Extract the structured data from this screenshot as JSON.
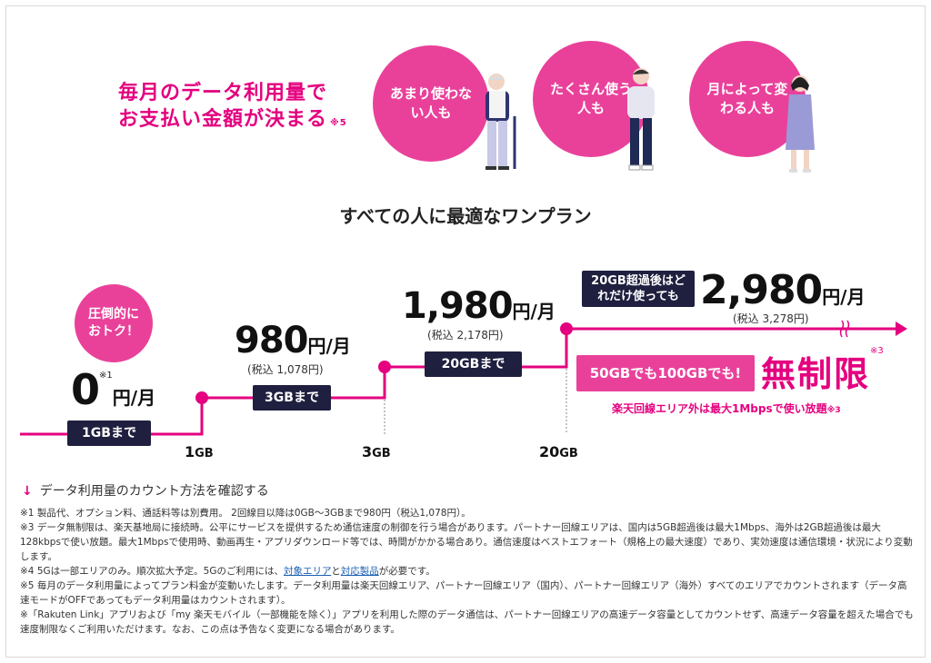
{
  "headline": {
    "line1": "毎月のデータ利用量で",
    "line2": "お支払い金額が決まる",
    "note": "※5"
  },
  "circles": [
    {
      "label": "あまり使わない人も"
    },
    {
      "label": "たくさん使う人も"
    },
    {
      "label": "月によって変わる人も"
    }
  ],
  "subtitle": "すべての人に最適なワンプラン",
  "badge": {
    "label": "圧倒的におトク！"
  },
  "tiers": [
    {
      "price": "0",
      "note": "※1",
      "unit": "円/月",
      "label": "1GBまで"
    },
    {
      "price": "980",
      "unit": "円/月",
      "tax": "(税込 1,078円)",
      "label": "3GBまで"
    },
    {
      "price": "1,980",
      "unit": "円/月",
      "tax": "(税込 2,178円)",
      "label": "20GBまで"
    },
    {
      "price": "2,980",
      "unit": "円/月",
      "tax": "(税込 3,278円)",
      "label": "20GB超過後はどれだけ使っても"
    }
  ],
  "xaxis": {
    "ticks": [
      {
        "num": "1",
        "unit": "GB"
      },
      {
        "num": "3",
        "unit": "GB"
      },
      {
        "num": "20",
        "unit": "GB"
      }
    ]
  },
  "unlimited": {
    "box": "50GBでも100GBでも!",
    "big": "無制限",
    "note": "※3",
    "sub": "楽天回線エリア外は最大1Mbpsで使い放題",
    "sub_note": "※3"
  },
  "link": {
    "text": "データ利用量のカウント方法を確認する"
  },
  "notes": {
    "n1": "※1 製品代、オプション料、通話料等は別費用。 2回線目以降は0GB～3GBまで980円（税込1,078円）。",
    "n3": "※3 データ無制限は、楽天基地局に接続時。公平にサービスを提供するため通信速度の制御を行う場合があります。パートナー回線エリアは、国内は5GB超過後は最大1Mbps、海外は2GB超過後は最大128kbpsで使い放題。最大1Mbpsで使用時、動画再生・アプリダウンロード等では、時間がかかる場合あり。通信速度はベストエフォート（規格上の最大速度）であり、実効速度は通信環境・状況により変動します。",
    "n4_pre": "※4 5Gは一部エリアのみ。順次拡大予定。5Gのご利用には、",
    "n4_link1": "対象エリア",
    "n4_mid": "と",
    "n4_link2": "対応製品",
    "n4_post": "が必要です。",
    "n5": "※5 毎月のデータ利用量によってプラン料金が変動いたします。データ利用量は楽天回線エリア、パートナー回線エリア（国内）、パートナー回線エリア（海外）すべてのエリアでカウントされます（データ高速モードがOFFであってもデータ利用量はカウントされます）。",
    "n6": "※「Rakuten Link」アプリおよび「my 楽天モバイル（一部機能を除く）」アプリを利用した際のデータ通信は、パートナー回線エリアの高速データ容量としてカウントせず、高速データ容量を超えた場合でも速度制限なくご利用いただけます。なお、この点は予告なく変更になる場合があります。"
  },
  "colors": {
    "accent": "#e4007f",
    "accent_light": "#e9419a",
    "navy": "#1f1f3f"
  }
}
